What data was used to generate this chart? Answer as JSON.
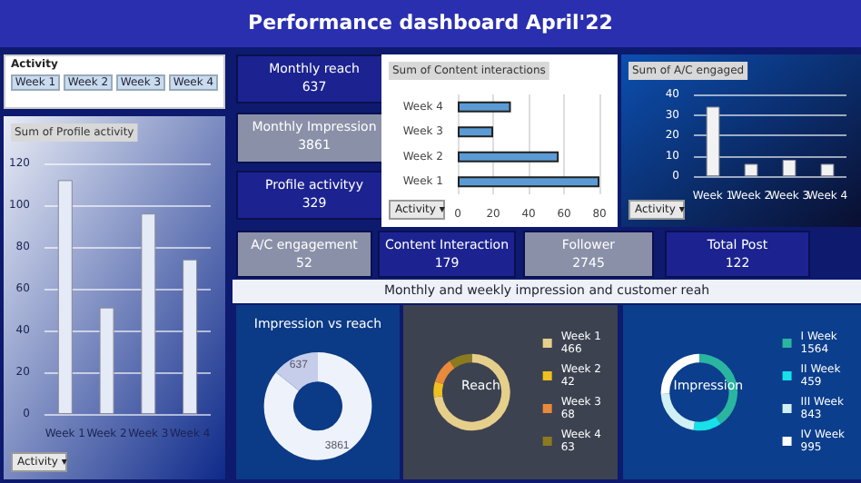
{
  "chart_data": [
    {
      "type": "other",
      "title": "Performance dashboard April'22",
      "categories": [
        "Monthly reach",
        "Monthly Impression",
        "Profile activityy",
        "A/C engagement",
        "Content Interaction",
        "Follower",
        "Total Post"
      ],
      "values": [
        637,
        3861,
        329,
        52,
        179,
        2745,
        122
      ],
      "data_labels": true,
      "annotations": [
        "Activity",
        "Week 1",
        "Week 2",
        "Week 3",
        "Week 4",
        "Monthly and weekly impression and customer reah"
      ]
    },
    {
      "type": "bar",
      "title": "Sum of Profile activity",
      "categories": [
        "Week 1",
        "Week 2",
        "Week 3",
        "Week 4"
      ],
      "values": [
        112,
        51,
        96,
        74
      ],
      "color": "#e4eaf6",
      "ylim": [
        0,
        120
      ],
      "yticks": [
        0,
        20,
        40,
        60,
        80,
        100,
        120
      ],
      "grid": "y",
      "annotations": [
        "Activity ▾"
      ]
    },
    {
      "type": "bar",
      "orientation": "horizontal",
      "title": "Sum of Content interactions",
      "categories": [
        "Week 4",
        "Week 3",
        "Week 2",
        "Week 1"
      ],
      "values": [
        30,
        20,
        57,
        80
      ],
      "color": "#5b9bd5",
      "xlim": [
        0,
        80
      ],
      "xticks": [
        0,
        20,
        40,
        60,
        80
      ],
      "grid": "x",
      "annotations": [
        "Activity ▾"
      ]
    },
    {
      "type": "bar",
      "title": "Sum of A/C engaged",
      "categories": [
        "Week 1",
        "Week 2",
        "Week 3",
        "Week 4"
      ],
      "values": [
        34,
        6,
        8,
        6
      ],
      "color": "#f2f2f2",
      "ylim": [
        0,
        40
      ],
      "yticks": [
        0,
        10,
        20,
        30,
        40
      ],
      "grid": "y",
      "annotations": [
        "Activity ▾"
      ]
    },
    {
      "type": "donut",
      "title": "Impression vs reach",
      "categories": [
        null,
        null
      ],
      "values": [
        3861,
        637
      ],
      "colors": [
        "#eef2fa",
        "#c5cdea"
      ],
      "data_labels": true
    },
    {
      "type": "donut",
      "title": "Reach",
      "categories": [
        "Week 1",
        "Week 2",
        "Week 3",
        "Week 4"
      ],
      "values": [
        466,
        42,
        68,
        63
      ],
      "colors": [
        "#e6cf8a",
        "#f0c020",
        "#e88a3a",
        "#8a7a20"
      ],
      "legend": "right",
      "data_labels": true
    },
    {
      "type": "donut",
      "title": "Impression",
      "categories": [
        "I Week",
        "II Week",
        "III Week",
        "IV Week"
      ],
      "values": [
        1564,
        459,
        843,
        995
      ],
      "colors": [
        "#2ab5a0",
        "#18e0e8",
        "#d0f0f5",
        "#ffffff"
      ],
      "legend": "right",
      "data_labels": true
    }
  ]
}
